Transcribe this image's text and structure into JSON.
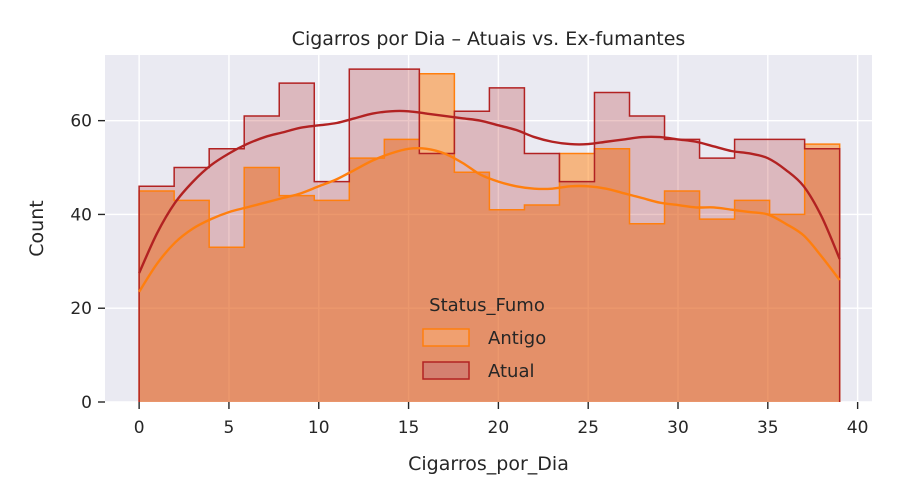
{
  "chart_data": {
    "type": "histogram",
    "title": "Cigarros por Dia – Atuais vs. Ex-fumantes",
    "xlabel": "Cigarros_por_Dia",
    "ylabel": "Count",
    "xlim": [
      -1.9,
      40.8
    ],
    "ylim": [
      0,
      74
    ],
    "x_ticks": [
      0,
      5,
      10,
      15,
      20,
      25,
      30,
      35,
      40
    ],
    "y_ticks": [
      0,
      20,
      40,
      60
    ],
    "grid": true,
    "bin_edges": [
      0,
      1.95,
      3.9,
      5.85,
      7.8,
      9.75,
      11.7,
      13.65,
      15.6,
      17.55,
      19.5,
      21.45,
      23.4,
      25.35,
      27.3,
      29.25,
      31.2,
      33.15,
      35.1,
      37.05,
      39
    ],
    "legend": {
      "title": "Status_Fumo",
      "position": "bottom-center"
    },
    "series": [
      {
        "name": "Antigo",
        "color": "#ff7f0e",
        "counts": [
          45,
          43,
          33,
          50,
          44,
          43,
          52,
          56,
          70,
          49,
          41,
          42,
          53,
          54,
          38,
          45,
          39,
          43,
          40,
          55
        ],
        "kde_x": [
          0,
          1,
          2,
          3,
          4,
          5,
          6,
          7,
          8,
          9,
          10,
          11,
          12,
          13,
          14,
          15,
          16,
          17,
          18,
          19,
          20,
          21,
          22,
          23,
          24,
          25,
          26,
          27,
          28,
          29,
          30,
          31,
          32,
          33,
          34,
          35,
          36,
          37,
          38,
          39
        ],
        "kde_y": [
          23.5,
          29.5,
          34,
          37,
          39,
          40.5,
          41.5,
          42.5,
          43.5,
          44.5,
          46,
          47.5,
          49.5,
          51.5,
          53,
          54,
          54,
          53,
          51,
          48.5,
          47,
          46,
          45.5,
          45.5,
          46,
          46,
          45.5,
          44.5,
          43.5,
          42.5,
          42,
          41.5,
          41.5,
          41,
          40.5,
          40,
          38,
          35.5,
          31,
          26
        ]
      },
      {
        "name": "Atual",
        "color": "#b22222",
        "counts": [
          46,
          50,
          54,
          61,
          68,
          47,
          71,
          71,
          53,
          62,
          67,
          53,
          47,
          66,
          61,
          56,
          52,
          56,
          56,
          54
        ],
        "kde_x": [
          0,
          1,
          2,
          3,
          4,
          5,
          6,
          7,
          8,
          9,
          10,
          11,
          12,
          13,
          14,
          15,
          16,
          17,
          18,
          19,
          20,
          21,
          22,
          23,
          24,
          25,
          26,
          27,
          28,
          29,
          30,
          31,
          32,
          33,
          34,
          35,
          36,
          37,
          38,
          39
        ],
        "kde_y": [
          27.5,
          36,
          42.5,
          47,
          50.5,
          53,
          55,
          56.5,
          57.5,
          58.5,
          59,
          59.5,
          60.5,
          61.5,
          62,
          62,
          61.5,
          61,
          60.5,
          60,
          59,
          58,
          56.5,
          55.5,
          55,
          55,
          55.5,
          56,
          56.5,
          56.5,
          56,
          55.5,
          54.5,
          53.5,
          53,
          52,
          49.5,
          46,
          39.5,
          30.5
        ]
      }
    ]
  }
}
